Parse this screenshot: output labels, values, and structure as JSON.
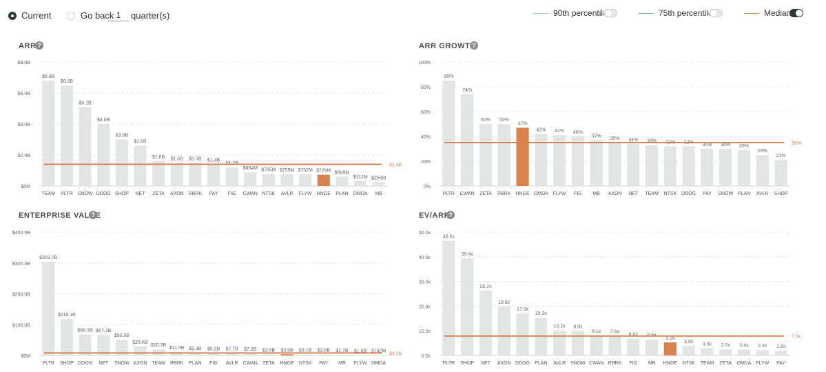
{
  "controls": {
    "current_label": "Current",
    "goback_label": "Go back",
    "goback_value": "1",
    "quarters_label": "quarter(s)",
    "p90_label": "90th percentile",
    "p75_label": "75th percentile",
    "median_label": "Median",
    "p90_on": false,
    "p75_on": false,
    "median_on": true
  },
  "colors": {
    "bar": "#e1e6e4",
    "highlight": "#d9824f",
    "median": "#d9824f",
    "p90": "#9fc6dc",
    "p75": "#7aa7c4",
    "toggle_on": "#2b3a36"
  },
  "chart_data": [
    {
      "id": "arr",
      "type": "bar",
      "title": "ARR",
      "help_icon": "question-circle-icon",
      "categories": [
        "TEAM",
        "PLTR",
        "SNOW",
        "DDOG",
        "SHOP",
        "NET",
        "ZETA",
        "AXON",
        "RBRK",
        "PAY",
        "FIG",
        "CWAN",
        "NTSK",
        "AVLR",
        "FLYW",
        "HNGE",
        "PLAN",
        "OMDA",
        "MB"
      ],
      "values": [
        6.8,
        6.5,
        5.1,
        4.0,
        3.0,
        2.6,
        1.6,
        1.5,
        1.5,
        1.4,
        1.2,
        0.884,
        0.785,
        0.759,
        0.752,
        0.729,
        0.609,
        0.312,
        0.255
      ],
      "value_labels": [
        "$6.8B",
        "$6.5B",
        "$5.1B",
        "$4.0B",
        "$3.0B",
        "$2.6B",
        "$1.6B",
        "$1.5B",
        "$1.5B",
        "$1.4B",
        "$1.2B",
        "$884M",
        "$785M",
        "$759M",
        "$752M",
        "$729M",
        "$609M",
        "$312M",
        "$255M"
      ],
      "highlight": "HNGE",
      "ylim": [
        0,
        8
      ],
      "yticks": [
        0,
        2,
        4,
        6,
        8
      ],
      "ytick_labels": [
        "$0M",
        "$2.0B",
        "$4.0B",
        "$6.0B",
        "$8.0B"
      ],
      "median": 1.4,
      "median_label": "$1.4B",
      "grid": true
    },
    {
      "id": "arr_growth",
      "type": "bar",
      "title": "ARR GROWTH",
      "help_icon": "question-circle-icon",
      "categories": [
        "PLTR",
        "CWAN",
        "ZETA",
        "RBRK",
        "HNGE",
        "OMDA",
        "FLYW",
        "FIG",
        "MB",
        "AXON",
        "NET",
        "TEAM",
        "NTSK",
        "DDOG",
        "PAY",
        "SNOW",
        "PLAN",
        "AVLR",
        "SHOP"
      ],
      "values": [
        85,
        74,
        50,
        50,
        47,
        42,
        41,
        40,
        37,
        35,
        34,
        33,
        32,
        32,
        30,
        30,
        29,
        25,
        21
      ],
      "value_labels": [
        "85%",
        "74%",
        "50%",
        "50%",
        "47%",
        "42%",
        "41%",
        "40%",
        "37%",
        "35%",
        "34%",
        "33%",
        "32%",
        "32%",
        "30%",
        "30%",
        "29%",
        "25%",
        "21%"
      ],
      "highlight": "HNGE",
      "ylim": [
        0,
        100
      ],
      "yticks": [
        0,
        20,
        40,
        60,
        80,
        100
      ],
      "ytick_labels": [
        "0%",
        "20%",
        "40%",
        "60%",
        "80%",
        "100%"
      ],
      "median": 35,
      "median_label": "35%",
      "grid": true
    },
    {
      "id": "enterprise_value",
      "type": "bar",
      "title": "ENTERPRISE VALUE",
      "help_icon": "question-circle-icon",
      "categories": [
        "PLTR",
        "SHOP",
        "DDOG",
        "NET",
        "SNOW",
        "AXON",
        "TEAM",
        "RBRK",
        "PLAN",
        "FIG",
        "AVLR",
        "CWAN",
        "ZETA",
        "HNGE",
        "NTSK",
        "PAY",
        "MB",
        "FLYW",
        "OMDA"
      ],
      "values": [
        303.7,
        118.1,
        68.3,
        67.2,
        50.9,
        29.6,
        20.3,
        11.5,
        9.3,
        8.2,
        7.7,
        7.2,
        3.9,
        3.9,
        3.1,
        2.8,
        1.7,
        1.6,
        0.742
      ],
      "value_labels": [
        "$303.7B",
        "$118.1B",
        "$68.3B",
        "$67.2B",
        "$50.9B",
        "$29.6B",
        "$20.3B",
        "$11.5B",
        "$9.3B",
        "$8.2B",
        "$7.7B",
        "$7.2B",
        "$3.9B",
        "$3.9B",
        "$3.1B",
        "$2.8B",
        "$1.7B",
        "$1.6B",
        "$742M"
      ],
      "highlight": "HNGE",
      "ylim": [
        0,
        400
      ],
      "yticks": [
        0,
        100,
        200,
        300,
        400
      ],
      "ytick_labels": [
        "$0M",
        "$100.0B",
        "$200.0B",
        "$300.0B",
        "$400.0B"
      ],
      "median": 8.2,
      "median_label": "$8.2B",
      "grid": true
    },
    {
      "id": "ev_arr",
      "type": "bar",
      "title": "EV/ARR",
      "help_icon": "question-circle-icon",
      "categories": [
        "PLTR",
        "SHOP",
        "NET",
        "AXON",
        "DDOG",
        "PLAN",
        "AVLR",
        "SNOW",
        "CWAN",
        "RBRK",
        "FIG",
        "MB",
        "HNGE",
        "NTSK",
        "TEAM",
        "ZETA",
        "OMDA",
        "FLYW",
        "PAY"
      ],
      "values": [
        46.5,
        39.4,
        26.2,
        19.8,
        17.0,
        15.3,
        10.2,
        9.9,
        8.1,
        7.9,
        6.8,
        6.5,
        5.3,
        3.9,
        3.0,
        2.5,
        2.4,
        2.2,
        1.9
      ],
      "value_labels": [
        "46.5x",
        "39.4x",
        "26.2x",
        "19.8x",
        "17.0x",
        "15.3x",
        "10.2x",
        "9.9x",
        "8.1x",
        "7.9x",
        "6.8x",
        "6.5x",
        "5.3x",
        "3.9x",
        "3.0x",
        "2.5x",
        "2.4x",
        "2.2x",
        "1.9x"
      ],
      "highlight": "HNGE",
      "ylim": [
        0,
        50
      ],
      "yticks": [
        0,
        10,
        20,
        30,
        40,
        50
      ],
      "ytick_labels": [
        "0.0x",
        "10.0x",
        "20.0x",
        "30.0x",
        "40.0x",
        "50.0x"
      ],
      "median": 7.9,
      "median_label": "7.9x",
      "grid": true
    }
  ]
}
